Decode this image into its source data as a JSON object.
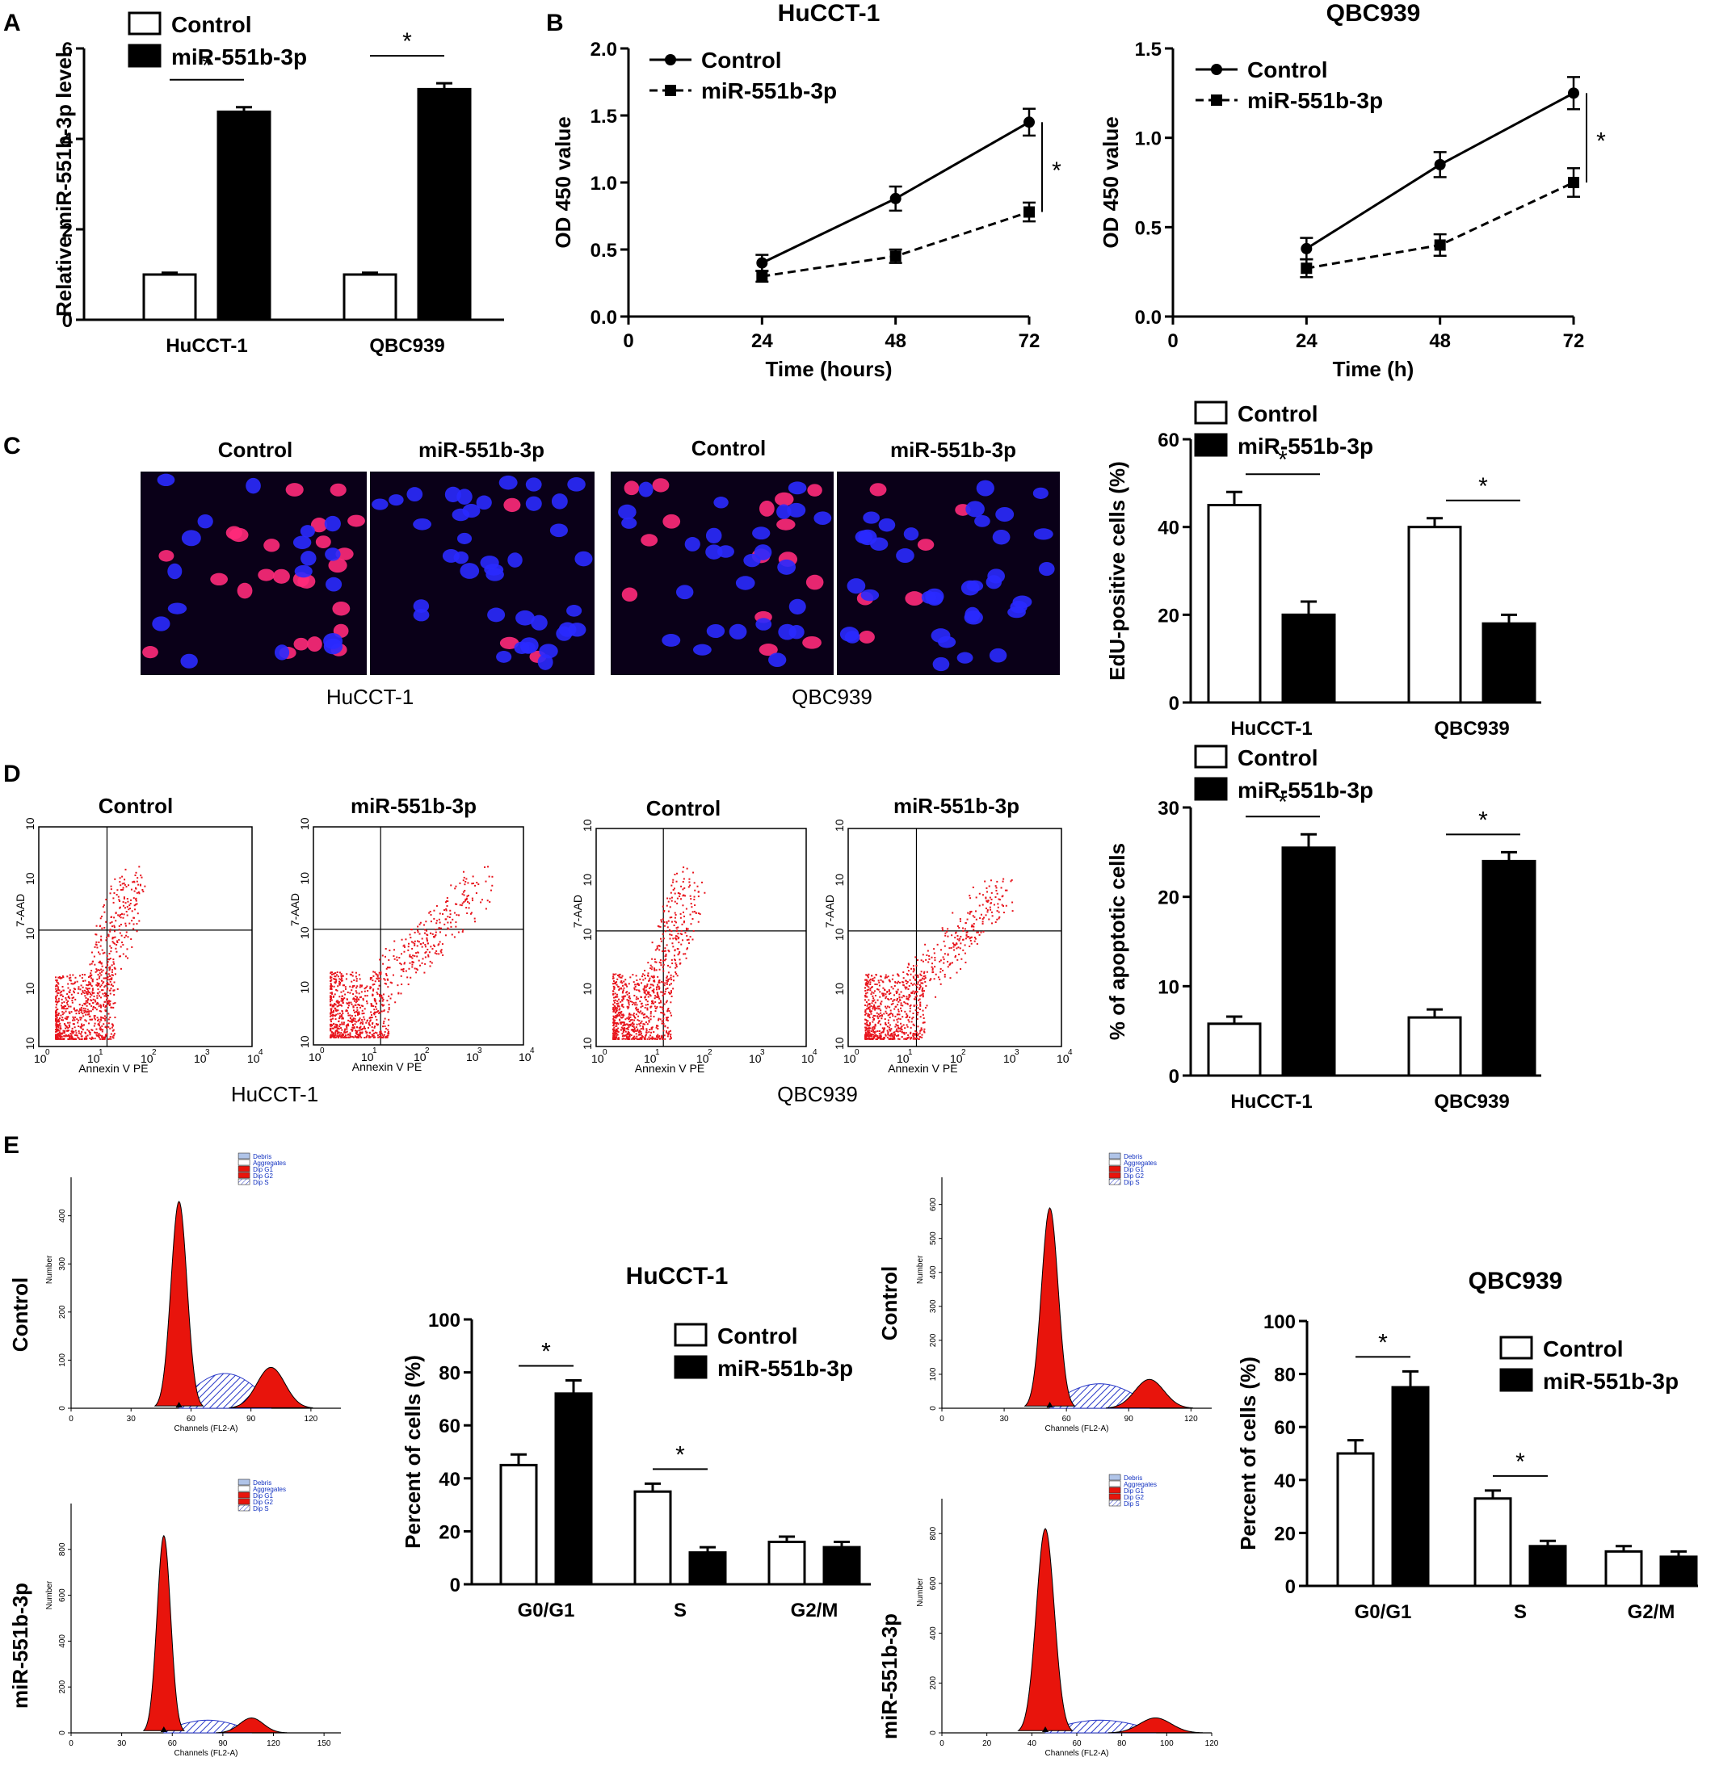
{
  "panel_letters": [
    "A",
    "B",
    "C",
    "D",
    "E"
  ],
  "legend": {
    "control": "Control",
    "mir": "miR-551b-3p"
  },
  "significance_mark": "*",
  "colors": {
    "control_fill": "#ffffff",
    "mir_fill": "#000000",
    "stroke": "#000000",
    "flow_dot": "#e8141c",
    "hist_fill": "#e8140c",
    "hist_s_hatch": "#2838c8",
    "edu_red": "#ff2a7a",
    "edu_blue": "#2a2aff",
    "micrograph_bg": "#0a0018"
  },
  "chart_data": [
    {
      "id": "A",
      "type": "bar",
      "title": "",
      "ylabel": "Relative miR-551b-3p level",
      "xlabel": "",
      "ylim": [
        0,
        6
      ],
      "yticks": [
        "0",
        "2",
        "4",
        "6"
      ],
      "categories": [
        "HuCCT-1",
        "QBC939"
      ],
      "series": [
        {
          "name": "Control",
          "values": [
            1.0,
            1.0
          ],
          "errors": [
            0.04,
            0.04
          ]
        },
        {
          "name": "miR-551b-3p",
          "values": [
            4.6,
            5.1
          ],
          "errors": [
            0.1,
            0.13
          ]
        }
      ],
      "significant_groups": [
        0,
        1
      ],
      "legend": "top-left"
    },
    {
      "id": "B1",
      "type": "line",
      "title": "HuCCT-1",
      "xlabel": "Time (hours)",
      "ylabel": "OD 450 value",
      "xlim": [
        0,
        72
      ],
      "ylim": [
        0,
        2.0
      ],
      "xticks": [
        "0",
        "24",
        "48",
        "72"
      ],
      "yticks": [
        "0.0",
        "0.5",
        "1.0",
        "1.5",
        "2.0"
      ],
      "x": [
        24,
        48,
        72
      ],
      "series": [
        {
          "name": "Control",
          "values": [
            0.4,
            0.88,
            1.45
          ],
          "errors": [
            0.06,
            0.09,
            0.1
          ],
          "style": "solid",
          "marker": "circle"
        },
        {
          "name": "miR-551b-3p",
          "values": [
            0.3,
            0.45,
            0.78
          ],
          "errors": [
            0.04,
            0.05,
            0.07
          ],
          "style": "dashed",
          "marker": "square"
        }
      ],
      "legend": "top-left"
    },
    {
      "id": "B2",
      "type": "line",
      "title": "QBC939",
      "xlabel": "Time (h)",
      "ylabel": "OD 450 value",
      "xlim": [
        0,
        72
      ],
      "ylim": [
        0,
        1.5
      ],
      "xticks": [
        "0",
        "24",
        "48",
        "72"
      ],
      "yticks": [
        "0.0",
        "0.5",
        "1.0",
        "1.5"
      ],
      "x": [
        24,
        48,
        72
      ],
      "series": [
        {
          "name": "Control",
          "values": [
            0.38,
            0.85,
            1.25
          ],
          "errors": [
            0.06,
            0.07,
            0.09
          ],
          "style": "solid",
          "marker": "circle"
        },
        {
          "name": "miR-551b-3p",
          "values": [
            0.27,
            0.4,
            0.75
          ],
          "errors": [
            0.05,
            0.06,
            0.08
          ],
          "style": "dashed",
          "marker": "square"
        }
      ],
      "legend": "top-left"
    },
    {
      "id": "C",
      "type": "bar",
      "title": "",
      "ylabel": "EdU-positive cells (%)",
      "xlabel": "",
      "ylim": [
        0,
        60
      ],
      "yticks": [
        "0",
        "20",
        "40",
        "60"
      ],
      "categories": [
        "HuCCT-1",
        "QBC939"
      ],
      "series": [
        {
          "name": "Control",
          "values": [
            45,
            40
          ],
          "errors": [
            3,
            2
          ]
        },
        {
          "name": "miR-551b-3p",
          "values": [
            20,
            18
          ],
          "errors": [
            3,
            2
          ]
        }
      ],
      "significant_groups": [
        0,
        1
      ],
      "legend": "top"
    },
    {
      "id": "D",
      "type": "bar",
      "title": "",
      "ylabel": "% of apoptotic cells",
      "xlabel": "",
      "ylim": [
        0,
        30
      ],
      "yticks": [
        "0",
        "10",
        "20",
        "30"
      ],
      "categories": [
        "HuCCT-1",
        "QBC939"
      ],
      "series": [
        {
          "name": "Control",
          "values": [
            5.8,
            6.5
          ],
          "errors": [
            0.8,
            0.9
          ]
        },
        {
          "name": "miR-551b-3p",
          "values": [
            25.5,
            24
          ],
          "errors": [
            1.5,
            1.0
          ]
        }
      ],
      "significant_groups": [
        0,
        1
      ],
      "legend": "top"
    },
    {
      "id": "E1",
      "type": "bar",
      "title": "HuCCT-1",
      "ylabel": "Percent of cells (%)",
      "xlabel": "",
      "ylim": [
        0,
        100
      ],
      "yticks": [
        "0",
        "20",
        "40",
        "60",
        "80",
        "100"
      ],
      "categories": [
        "G0/G1",
        "S",
        "G2/M"
      ],
      "series": [
        {
          "name": "Control",
          "values": [
            45,
            35,
            16
          ],
          "errors": [
            4,
            3,
            2
          ]
        },
        {
          "name": "miR-551b-3p",
          "values": [
            72,
            12,
            14
          ],
          "errors": [
            5,
            2,
            2
          ]
        }
      ],
      "significant_groups": [
        0,
        1
      ],
      "legend": "top-right"
    },
    {
      "id": "E2",
      "type": "bar",
      "title": "QBC939",
      "ylabel": "Percent of cells (%)",
      "xlabel": "",
      "ylim": [
        0,
        100
      ],
      "yticks": [
        "0",
        "20",
        "40",
        "60",
        "80",
        "100"
      ],
      "categories": [
        "G0/G1",
        "S",
        "G2/M"
      ],
      "series": [
        {
          "name": "Control",
          "values": [
            50,
            33,
            13
          ],
          "errors": [
            5,
            3,
            2
          ]
        },
        {
          "name": "miR-551b-3p",
          "values": [
            75,
            15,
            11
          ],
          "errors": [
            6,
            2,
            2
          ]
        }
      ],
      "significant_groups": [
        0,
        1
      ],
      "legend": "top-right"
    }
  ],
  "micrographs": {
    "column_labels": [
      "Control",
      "miR-551b-3p",
      "Control",
      "miR-551b-3p"
    ],
    "cell_lines": [
      "HuCCT-1",
      "QBC939"
    ],
    "red_nucleus_counts": [
      24,
      3,
      15,
      6
    ],
    "description_stain": "EdU"
  },
  "flow_cytometry": {
    "column_labels": [
      "Control",
      "miR-551b-3p",
      "Control",
      "miR-551b-3p"
    ],
    "cell_lines": [
      "HuCCT-1",
      "QBC939"
    ],
    "xlabel": "Annexin V PE",
    "ylabel": "7-AAD",
    "decade_labels": [
      "10",
      "10",
      "10",
      "10",
      "10"
    ],
    "decade_exponents": [
      "0",
      "1",
      "2",
      "3",
      "4"
    ]
  },
  "cell_cycle_histograms": {
    "row_labels": [
      "Control",
      "miR-551b-3p"
    ],
    "xlabel": "Channels (FL2-A)",
    "ylabel": "Number",
    "legend_items": [
      "Debris",
      "Aggregates",
      "Dip G1",
      "Dip G2",
      "Dip S"
    ],
    "plots": [
      {
        "id": "hc",
        "xticks": [
          "0",
          "30",
          "60",
          "90",
          "120"
        ],
        "yticks": [
          "0",
          "100",
          "200",
          "300",
          "400"
        ],
        "xmax": 135,
        "ymax": 480,
        "g1_center": 54,
        "g1_peak": 430,
        "g2_center": 100,
        "g2_peak": 85
      },
      {
        "id": "hm",
        "xticks": [
          "0",
          "30",
          "60",
          "90",
          "120",
          "150"
        ],
        "yticks": [
          "0",
          "200",
          "400",
          "600",
          "800"
        ],
        "xmax": 160,
        "ymax": 1000,
        "g1_center": 55,
        "g1_peak": 860,
        "g2_center": 107,
        "g2_peak": 65
      },
      {
        "id": "qc",
        "xticks": [
          "0",
          "30",
          "60",
          "90",
          "120"
        ],
        "yticks": [
          "0",
          "100",
          "200",
          "300",
          "400",
          "500",
          "600"
        ],
        "xmax": 130,
        "ymax": 680,
        "g1_center": 52,
        "g1_peak": 590,
        "g2_center": 100,
        "g2_peak": 85
      },
      {
        "id": "qm",
        "xticks": [
          "0",
          "20",
          "40",
          "60",
          "80",
          "100",
          "120"
        ],
        "yticks": [
          "0",
          "200",
          "400",
          "600",
          "800"
        ],
        "xmax": 120,
        "ymax": 940,
        "g1_center": 46,
        "g1_peak": 820,
        "g2_center": 95,
        "g2_peak": 60
      }
    ]
  }
}
